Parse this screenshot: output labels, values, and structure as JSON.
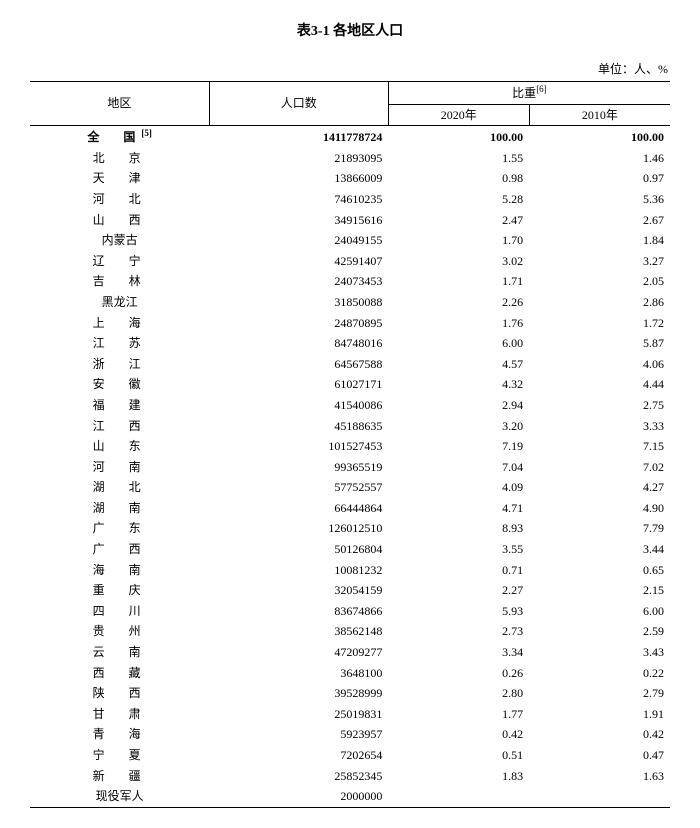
{
  "title": "表3-1 各地区人口",
  "unit_label": "单位：人、%",
  "header": {
    "region": "地区",
    "population": "人口数",
    "ratio_group": "比重",
    "ratio_sup": "[6]",
    "y2020": "2020年",
    "y2010": "2010年"
  },
  "total_row": {
    "region_text": "全　国",
    "region_sup": "[5]",
    "population": "1411778724",
    "p2020": "100.00",
    "p2010": "100.00"
  },
  "rows": [
    {
      "region": "北　京",
      "population": "21893095",
      "p2020": "1.55",
      "p2010": "1.46"
    },
    {
      "region": "天　津",
      "population": "13866009",
      "p2020": "0.98",
      "p2010": "0.97"
    },
    {
      "region": "河　北",
      "population": "74610235",
      "p2020": "5.28",
      "p2010": "5.36"
    },
    {
      "region": "山　西",
      "population": "34915616",
      "p2020": "2.47",
      "p2010": "2.67"
    },
    {
      "region": "内蒙古",
      "population": "24049155",
      "p2020": "1.70",
      "p2010": "1.84",
      "tight": true
    },
    {
      "region": "辽　宁",
      "population": "42591407",
      "p2020": "3.02",
      "p2010": "3.27"
    },
    {
      "region": "吉　林",
      "population": "24073453",
      "p2020": "1.71",
      "p2010": "2.05"
    },
    {
      "region": "黑龙江",
      "population": "31850088",
      "p2020": "2.26",
      "p2010": "2.86",
      "tight": true
    },
    {
      "region": "上　海",
      "population": "24870895",
      "p2020": "1.76",
      "p2010": "1.72"
    },
    {
      "region": "江　苏",
      "population": "84748016",
      "p2020": "6.00",
      "p2010": "5.87"
    },
    {
      "region": "浙　江",
      "population": "64567588",
      "p2020": "4.57",
      "p2010": "4.06"
    },
    {
      "region": "安　徽",
      "population": "61027171",
      "p2020": "4.32",
      "p2010": "4.44"
    },
    {
      "region": "福　建",
      "population": "41540086",
      "p2020": "2.94",
      "p2010": "2.75"
    },
    {
      "region": "江　西",
      "population": "45188635",
      "p2020": "3.20",
      "p2010": "3.33"
    },
    {
      "region": "山　东",
      "population": "101527453",
      "p2020": "7.19",
      "p2010": "7.15"
    },
    {
      "region": "河　南",
      "population": "99365519",
      "p2020": "7.04",
      "p2010": "7.02"
    },
    {
      "region": "湖　北",
      "population": "57752557",
      "p2020": "4.09",
      "p2010": "4.27"
    },
    {
      "region": "湖　南",
      "population": "66444864",
      "p2020": "4.71",
      "p2010": "4.90"
    },
    {
      "region": "广　东",
      "population": "126012510",
      "p2020": "8.93",
      "p2010": "7.79"
    },
    {
      "region": "广　西",
      "population": "50126804",
      "p2020": "3.55",
      "p2010": "3.44"
    },
    {
      "region": "海　南",
      "population": "10081232",
      "p2020": "0.71",
      "p2010": "0.65"
    },
    {
      "region": "重　庆",
      "population": "32054159",
      "p2020": "2.27",
      "p2010": "2.15"
    },
    {
      "region": "四　川",
      "population": "83674866",
      "p2020": "5.93",
      "p2010": "6.00"
    },
    {
      "region": "贵　州",
      "population": "38562148",
      "p2020": "2.73",
      "p2010": "2.59"
    },
    {
      "region": "云　南",
      "population": "47209277",
      "p2020": "3.34",
      "p2010": "3.43"
    },
    {
      "region": "西　藏",
      "population": "3648100",
      "p2020": "0.26",
      "p2010": "0.22"
    },
    {
      "region": "陕　西",
      "population": "39528999",
      "p2020": "2.80",
      "p2010": "2.79"
    },
    {
      "region": "甘　肃",
      "population": "25019831",
      "p2020": "1.77",
      "p2010": "1.91"
    },
    {
      "region": "青　海",
      "population": "5923957",
      "p2020": "0.42",
      "p2010": "0.42"
    },
    {
      "region": "宁　夏",
      "population": "7202654",
      "p2020": "0.51",
      "p2010": "0.47"
    },
    {
      "region": "新　疆",
      "population": "25852345",
      "p2020": "1.83",
      "p2010": "1.63"
    },
    {
      "region": "现役军人",
      "population": "2000000",
      "p2020": "",
      "p2010": "",
      "tight": true
    }
  ],
  "style": {
    "font_family": "SimSun",
    "font_size_body": 12,
    "font_size_title": 14,
    "text_color": "#000000",
    "border_color": "#000000",
    "background_color": "#ffffff",
    "column_widths_pct": [
      28,
      28,
      22,
      22
    ],
    "line_height": 1.55
  }
}
